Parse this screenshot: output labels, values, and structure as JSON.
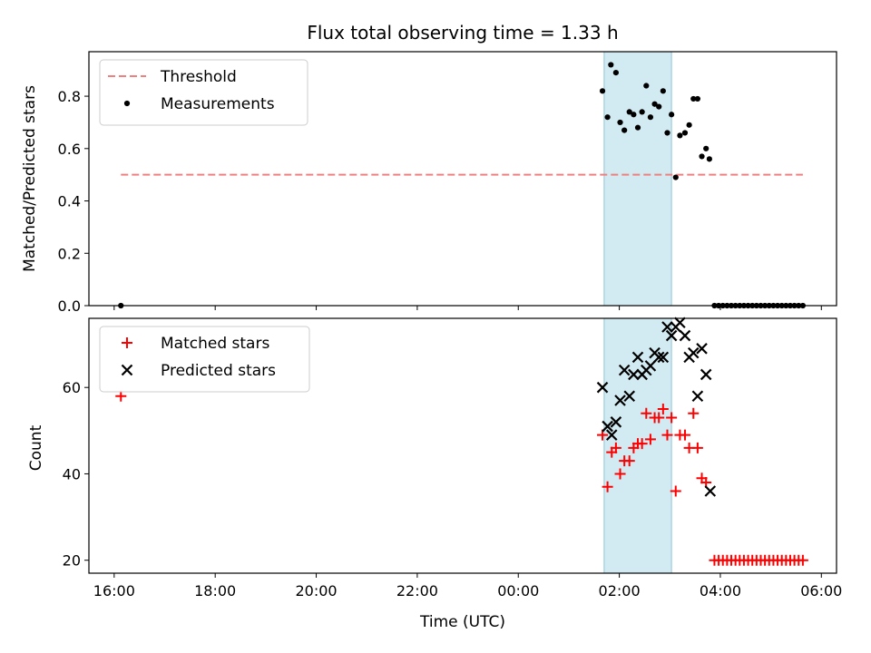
{
  "figure_title": "Flux total observing time = 1.33 h",
  "xlabel": "Time (UTC)",
  "x_tick_labels": [
    "16:00",
    "18:00",
    "20:00",
    "22:00",
    "00:00",
    "02:00",
    "04:00",
    "06:00"
  ],
  "shaded_region_color": "#add8e6",
  "chart_data": [
    {
      "type": "scatter",
      "title": "Flux total observing time = 1.33 h",
      "xlabel": "",
      "ylabel": "Matched/Predicted stars",
      "x_unit": "hours since 16:00 UTC",
      "xlim": [
        -0.5,
        14.3
      ],
      "ylim": [
        0,
        0.97
      ],
      "y_ticks": [
        "0.0",
        "0.2",
        "0.4",
        "0.6",
        "0.8"
      ],
      "grid": false,
      "legend": "top-left",
      "shaded_x_range": [
        "01:42",
        "03:02"
      ],
      "threshold": {
        "name": "Threshold",
        "value": 0.5,
        "x_range": [
          "16:08",
          "05:38"
        ],
        "color": "#f08080",
        "style": "dashed"
      },
      "series": [
        {
          "name": "Measurements",
          "color": "#000000",
          "marker": "dot",
          "points": [
            [
              "16:08",
              0.0
            ],
            [
              "01:40",
              0.82
            ],
            [
              "01:46",
              0.72
            ],
            [
              "01:50",
              0.92
            ],
            [
              "01:56",
              0.89
            ],
            [
              "02:01",
              0.7
            ],
            [
              "02:06",
              0.67
            ],
            [
              "02:12",
              0.74
            ],
            [
              "02:17",
              0.73
            ],
            [
              "02:22",
              0.68
            ],
            [
              "02:27",
              0.74
            ],
            [
              "02:32",
              0.84
            ],
            [
              "02:37",
              0.72
            ],
            [
              "02:42",
              0.77
            ],
            [
              "02:47",
              0.76
            ],
            [
              "02:52",
              0.82
            ],
            [
              "02:57",
              0.66
            ],
            [
              "03:02",
              0.73
            ],
            [
              "03:07",
              0.49
            ],
            [
              "03:12",
              0.65
            ],
            [
              "03:18",
              0.66
            ],
            [
              "03:23",
              0.69
            ],
            [
              "03:28",
              0.79
            ],
            [
              "03:33",
              0.79
            ],
            [
              "03:38",
              0.57
            ],
            [
              "03:43",
              0.6
            ],
            [
              "03:47",
              0.56
            ],
            [
              "03:53",
              0.0
            ],
            [
              "03:58",
              0.0
            ],
            [
              "04:03",
              0.0
            ],
            [
              "04:08",
              0.0
            ],
            [
              "04:13",
              0.0
            ],
            [
              "04:18",
              0.0
            ],
            [
              "04:23",
              0.0
            ],
            [
              "04:28",
              0.0
            ],
            [
              "04:33",
              0.0
            ],
            [
              "04:38",
              0.0
            ],
            [
              "04:43",
              0.0
            ],
            [
              "04:48",
              0.0
            ],
            [
              "04:53",
              0.0
            ],
            [
              "04:58",
              0.0
            ],
            [
              "05:03",
              0.0
            ],
            [
              "05:08",
              0.0
            ],
            [
              "05:13",
              0.0
            ],
            [
              "05:18",
              0.0
            ],
            [
              "05:23",
              0.0
            ],
            [
              "05:28",
              0.0
            ],
            [
              "05:33",
              0.0
            ],
            [
              "05:38",
              0.0
            ]
          ]
        }
      ]
    },
    {
      "type": "scatter",
      "title": "",
      "xlabel": "Time (UTC)",
      "ylabel": "Count",
      "x_unit": "hours since 16:00 UTC",
      "xlim": [
        -0.5,
        14.3
      ],
      "ylim": [
        17,
        76
      ],
      "y_ticks": [
        "20",
        "40",
        "60"
      ],
      "grid": false,
      "legend": "top-left",
      "shaded_x_range": [
        "01:42",
        "03:02"
      ],
      "series": [
        {
          "name": "Matched stars",
          "color": "#ff0000",
          "marker": "plus",
          "points": [
            [
              "16:08",
              58
            ],
            [
              "01:40",
              49
            ],
            [
              "01:46",
              37
            ],
            [
              "01:51",
              45
            ],
            [
              "01:56",
              46
            ],
            [
              "02:01",
              40
            ],
            [
              "02:06",
              43
            ],
            [
              "02:12",
              43
            ],
            [
              "02:17",
              46
            ],
            [
              "02:22",
              47
            ],
            [
              "02:27",
              47
            ],
            [
              "02:32",
              54
            ],
            [
              "02:37",
              48
            ],
            [
              "02:42",
              53
            ],
            [
              "02:47",
              53
            ],
            [
              "02:52",
              55
            ],
            [
              "02:57",
              49
            ],
            [
              "03:02",
              53
            ],
            [
              "03:07",
              36
            ],
            [
              "03:12",
              49
            ],
            [
              "03:18",
              49
            ],
            [
              "03:23",
              46
            ],
            [
              "03:28",
              54
            ],
            [
              "03:33",
              46
            ],
            [
              "03:38",
              39
            ],
            [
              "03:43",
              38
            ],
            [
              "03:53",
              20
            ],
            [
              "03:58",
              20
            ],
            [
              "04:03",
              20
            ],
            [
              "04:08",
              20
            ],
            [
              "04:13",
              20
            ],
            [
              "04:18",
              20
            ],
            [
              "04:23",
              20
            ],
            [
              "04:28",
              20
            ],
            [
              "04:33",
              20
            ],
            [
              "04:38",
              20
            ],
            [
              "04:43",
              20
            ],
            [
              "04:48",
              20
            ],
            [
              "04:53",
              20
            ],
            [
              "04:58",
              20
            ],
            [
              "05:03",
              20
            ],
            [
              "05:08",
              20
            ],
            [
              "05:13",
              20
            ],
            [
              "05:18",
              20
            ],
            [
              "05:23",
              20
            ],
            [
              "05:28",
              20
            ],
            [
              "05:33",
              20
            ],
            [
              "05:38",
              20
            ]
          ]
        },
        {
          "name": "Predicted stars",
          "color": "#000000",
          "marker": "x",
          "points": [
            [
              "01:40",
              60
            ],
            [
              "01:46",
              51
            ],
            [
              "01:51",
              49
            ],
            [
              "01:56",
              52
            ],
            [
              "02:01",
              57
            ],
            [
              "02:06",
              64
            ],
            [
              "02:12",
              58
            ],
            [
              "02:17",
              63
            ],
            [
              "02:22",
              67
            ],
            [
              "02:27",
              63
            ],
            [
              "02:32",
              64
            ],
            [
              "02:37",
              65
            ],
            [
              "02:42",
              68
            ],
            [
              "02:47",
              67
            ],
            [
              "02:52",
              67
            ],
            [
              "02:57",
              74
            ],
            [
              "03:02",
              72
            ],
            [
              "03:07",
              74
            ],
            [
              "03:12",
              75
            ],
            [
              "03:18",
              72
            ],
            [
              "03:23",
              67
            ],
            [
              "03:28",
              68
            ],
            [
              "03:33",
              58
            ],
            [
              "03:38",
              69
            ],
            [
              "03:43",
              63
            ],
            [
              "03:48",
              36
            ]
          ]
        }
      ]
    }
  ]
}
